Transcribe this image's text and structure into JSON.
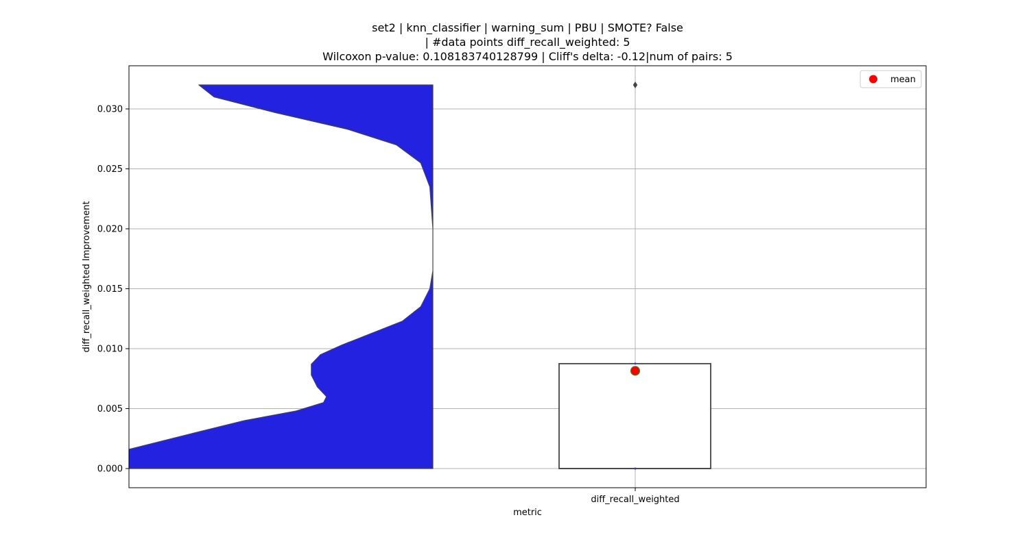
{
  "chart_data": {
    "type": "violin+box",
    "title_lines": [
      "set2 | knn_classifier | warning_sum | PBU | SMOTE? False",
      "| #data points diff_recall_weighted: 5",
      "Wilcoxon p-value: 0.108183740128799 | Cliff's delta: -0.12|num of pairs: 5"
    ],
    "xlabel": "metric",
    "ylabel": "diff_recall_weighted Improvement",
    "categories": [
      "diff_recall_weighted"
    ],
    "ylim": [
      -0.0016,
      0.0336
    ],
    "yticks": [
      0.0,
      0.005,
      0.01,
      0.015,
      0.02,
      0.025,
      0.03
    ],
    "ytick_labels": [
      "0.000",
      "0.005",
      "0.010",
      "0.015",
      "0.020",
      "0.025",
      "0.030"
    ],
    "grid": true,
    "legend": {
      "position": "top-right",
      "entries": [
        {
          "label": "mean",
          "color": "#ff0000"
        }
      ]
    },
    "violin": {
      "color": "#2222e0",
      "edge_color": "#444444",
      "range": [
        0.0,
        0.032
      ],
      "density_profile": [
        [
          0.0,
          1.0
        ],
        [
          0.0016,
          1.0
        ],
        [
          0.003,
          0.78
        ],
        [
          0.004,
          0.62
        ],
        [
          0.0048,
          0.45
        ],
        [
          0.0055,
          0.36
        ],
        [
          0.006,
          0.35
        ],
        [
          0.0068,
          0.38
        ],
        [
          0.0078,
          0.4
        ],
        [
          0.0087,
          0.4
        ],
        [
          0.0095,
          0.37
        ],
        [
          0.0103,
          0.3
        ],
        [
          0.0113,
          0.2
        ],
        [
          0.0123,
          0.1
        ],
        [
          0.0135,
          0.04
        ],
        [
          0.015,
          0.01
        ],
        [
          0.0165,
          0.0
        ],
        [
          0.02,
          0.0
        ],
        [
          0.0235,
          0.01
        ],
        [
          0.0255,
          0.04
        ],
        [
          0.027,
          0.12
        ],
        [
          0.0283,
          0.28
        ],
        [
          0.0297,
          0.52
        ],
        [
          0.031,
          0.72
        ],
        [
          0.032,
          0.77
        ]
      ]
    },
    "box": {
      "q1": 0.0,
      "median": 0.0,
      "q3": 0.00875,
      "whisker_low": 0.0,
      "whisker_high": 0.00875,
      "outliers": [
        0.032
      ],
      "mean": 0.00815,
      "mean_color": "#ff0000",
      "edge_color": "#444444"
    }
  }
}
